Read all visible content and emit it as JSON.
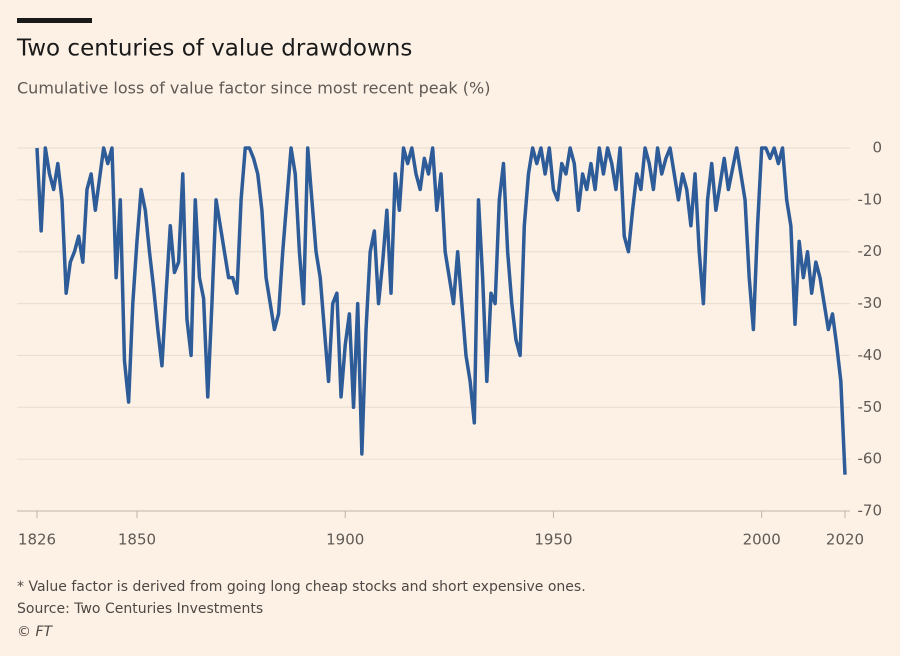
{
  "chart_data": {
    "type": "line",
    "title": "Two centuries of value drawdowns",
    "subtitle": "Cumulative loss of value factor since most recent peak (%)",
    "note": "* Value factor is derived from going long cheap stocks and short expensive ones.",
    "source": "Source: Two Centuries Investments",
    "credit": "© FT",
    "x": [
      1826,
      1827,
      1828,
      1829,
      1830,
      1831,
      1832,
      1833,
      1834,
      1835,
      1836,
      1837,
      1838,
      1839,
      1840,
      1841,
      1842,
      1843,
      1844,
      1845,
      1846,
      1847,
      1848,
      1849,
      1850,
      1851,
      1852,
      1853,
      1854,
      1855,
      1856,
      1857,
      1858,
      1859,
      1860,
      1861,
      1862,
      1863,
      1864,
      1865,
      1866,
      1867,
      1868,
      1869,
      1870,
      1871,
      1872,
      1873,
      1874,
      1875,
      1876,
      1877,
      1878,
      1879,
      1880,
      1881,
      1882,
      1883,
      1884,
      1885,
      1886,
      1887,
      1888,
      1889,
      1890,
      1891,
      1892,
      1893,
      1894,
      1895,
      1896,
      1897,
      1898,
      1899,
      1900,
      1901,
      1902,
      1903,
      1904,
      1905,
      1906,
      1907,
      1908,
      1909,
      1910,
      1911,
      1912,
      1913,
      1914,
      1915,
      1916,
      1917,
      1918,
      1919,
      1920,
      1921,
      1922,
      1923,
      1924,
      1925,
      1926,
      1927,
      1928,
      1929,
      1930,
      1931,
      1932,
      1933,
      1934,
      1935,
      1936,
      1937,
      1938,
      1939,
      1940,
      1941,
      1942,
      1943,
      1944,
      1945,
      1946,
      1947,
      1948,
      1949,
      1950,
      1951,
      1952,
      1953,
      1954,
      1955,
      1956,
      1957,
      1958,
      1959,
      1960,
      1961,
      1962,
      1963,
      1964,
      1965,
      1966,
      1967,
      1968,
      1969,
      1970,
      1971,
      1972,
      1973,
      1974,
      1975,
      1976,
      1977,
      1978,
      1979,
      1980,
      1981,
      1982,
      1983,
      1984,
      1985,
      1986,
      1987,
      1988,
      1989,
      1990,
      1991,
      1992,
      1993,
      1994,
      1995,
      1996,
      1997,
      1998,
      1999,
      2000,
      2001,
      2002,
      2003,
      2004,
      2005,
      2006,
      2007,
      2008,
      2009,
      2010,
      2011,
      2012,
      2013,
      2014,
      2015,
      2016,
      2017,
      2018,
      2019,
      2020
    ],
    "series": [
      {
        "name": "Value factor drawdown",
        "color": "#2e5c99",
        "values": [
          0,
          -16,
          0,
          -5,
          -8,
          -3,
          -10,
          -28,
          -22,
          -20,
          -17,
          -22,
          -8,
          -5,
          -12,
          -6,
          0,
          -3,
          0,
          -25,
          -10,
          -41,
          -49,
          -30,
          -18,
          -8,
          -12,
          -20,
          -27,
          -35,
          -42,
          -28,
          -15,
          -24,
          -22,
          -5,
          -33,
          -40,
          -10,
          -25,
          -29,
          -48,
          -30,
          -10,
          -15,
          -20,
          -25,
          -25,
          -28,
          -10,
          0,
          0,
          -2,
          -5,
          -12,
          -25,
          -30,
          -35,
          -32,
          -20,
          -10,
          0,
          -5,
          -20,
          -30,
          0,
          -10,
          -20,
          -25,
          -35,
          -45,
          -30,
          -28,
          -48,
          -38,
          -32,
          -50,
          -30,
          -59,
          -35,
          -20,
          -16,
          -30,
          -22,
          -12,
          -28,
          -5,
          -12,
          0,
          -3,
          0,
          -5,
          -8,
          -2,
          -5,
          0,
          -12,
          -5,
          -20,
          -25,
          -30,
          -20,
          -30,
          -40,
          -45,
          -53,
          -10,
          -25,
          -45,
          -28,
          -30,
          -10,
          -3,
          -20,
          -30,
          -37,
          -40,
          -15,
          -5,
          0,
          -3,
          0,
          -5,
          0,
          -8,
          -10,
          -3,
          -5,
          0,
          -3,
          -12,
          -5,
          -8,
          -3,
          -8,
          0,
          -5,
          0,
          -3,
          -8,
          0,
          -17,
          -20,
          -12,
          -5,
          -8,
          0,
          -3,
          -8,
          0,
          -5,
          -2,
          0,
          -5,
          -10,
          -5,
          -8,
          -15,
          -5,
          -20,
          -30,
          -10,
          -3,
          -12,
          -7,
          -2,
          -8,
          -4,
          0,
          -5,
          -10,
          -25,
          -35,
          -15,
          0,
          0,
          -2,
          0,
          -3,
          0,
          -10,
          -15,
          -34,
          -18,
          -25,
          -20,
          -28,
          -22,
          -25,
          -30,
          -35,
          -32,
          -38,
          -45,
          -63
        ]
      }
    ],
    "xlim": [
      1826,
      2020
    ],
    "xticks": [
      1826,
      1850,
      1900,
      1950,
      2000,
      2020
    ],
    "ylim": [
      -70,
      0
    ],
    "yticks": [
      0,
      -10,
      -20,
      -30,
      -40,
      -50,
      -60,
      -70
    ],
    "grid": true
  }
}
